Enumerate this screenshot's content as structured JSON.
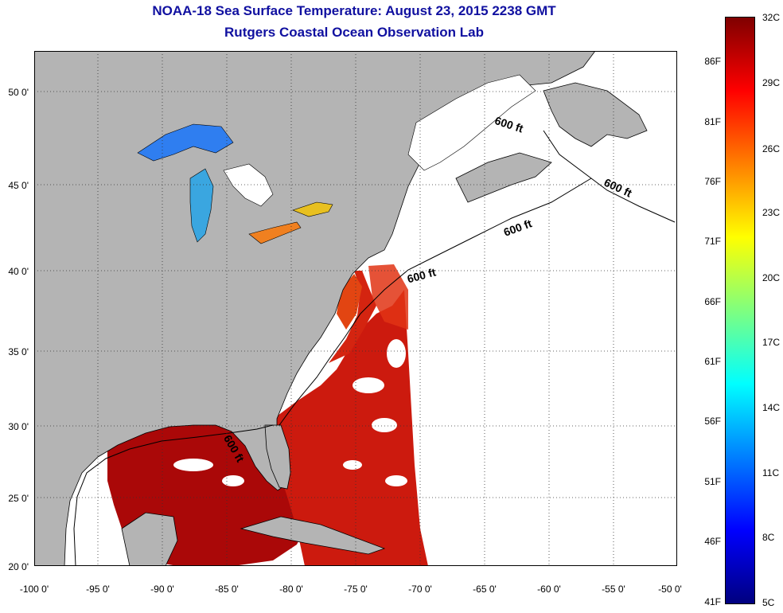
{
  "title": "NOAA-18 Sea Surface Temperature:  August 23, 2015 2238 GMT",
  "subtitle": "Rutgers Coastal Ocean Observation Lab",
  "map": {
    "lon_range": [
      -100,
      -50
    ],
    "lat_range": [
      20,
      52
    ],
    "lon_ticks": [
      "-100 0'",
      "-95 0'",
      "-90 0'",
      "-85 0'",
      "-80 0'",
      "-75 0'",
      "-70 0'",
      "-65 0'",
      "-60 0'",
      "-55 0'",
      "-50 0'"
    ],
    "lat_ticks": [
      "20 0'",
      "25 0'",
      "30 0'",
      "35 0'",
      "40 0'",
      "45 0'",
      "50 0'"
    ],
    "grid": "dotted",
    "land_color": "#b4b4b4",
    "no_data_color": "#ffffff",
    "contour_labels": [
      "600 ft",
      "600 ft",
      "600 ft",
      "600 ft",
      "600 ft"
    ]
  },
  "colorbar": {
    "celsius_labels": [
      "32C",
      "29C",
      "26C",
      "23C",
      "20C",
      "17C",
      "14C",
      "11C",
      "8C",
      "5C"
    ],
    "fahrenheit_labels": [
      "86F",
      "81F",
      "76F",
      "71F",
      "66F",
      "61F",
      "56F",
      "51F",
      "46F",
      "41F"
    ],
    "range_c": [
      5,
      32
    ],
    "colormap": [
      "#00007f",
      "#0000ff",
      "#007fff",
      "#00ffff",
      "#7fff7f",
      "#ffff00",
      "#ff7f00",
      "#ff0000",
      "#7f0000"
    ]
  }
}
